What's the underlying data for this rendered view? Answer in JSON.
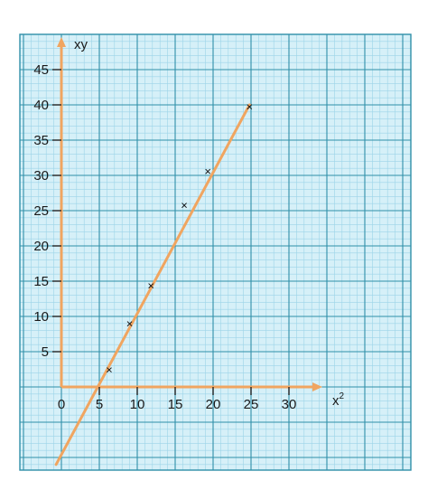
{
  "chart_data": {
    "type": "scatter",
    "title": "",
    "xlabel": "x",
    "xlabel_superscript": "2",
    "ylabel": "xy",
    "xlim": [
      -2,
      33
    ],
    "ylim": [
      -10,
      50
    ],
    "grid": true,
    "x_ticks": [
      "0",
      "5",
      "10",
      "15",
      "20",
      "25",
      "30"
    ],
    "y_ticks": [
      "5",
      "10",
      "15",
      "20",
      "25",
      "30",
      "35",
      "40",
      "45"
    ],
    "points": [
      {
        "x": 6.3,
        "y": 2.4
      },
      {
        "x": 9,
        "y": 8.9
      },
      {
        "x": 11.8,
        "y": 14.3
      },
      {
        "x": 16.2,
        "y": 25.7
      },
      {
        "x": 19.3,
        "y": 30.5
      },
      {
        "x": 24.8,
        "y": 39.7
      }
    ],
    "fit_line": {
      "slope": 2,
      "intercept": -9.6,
      "x_range": [
        -0.7,
        24.8
      ]
    },
    "marker": "×",
    "colors": {
      "axis": "#f0a560",
      "fit_line": "#f0a560",
      "grid_minor": "#9cd4e8",
      "grid_major": "#2f8fa9",
      "background": "#d6f0f8"
    }
  }
}
